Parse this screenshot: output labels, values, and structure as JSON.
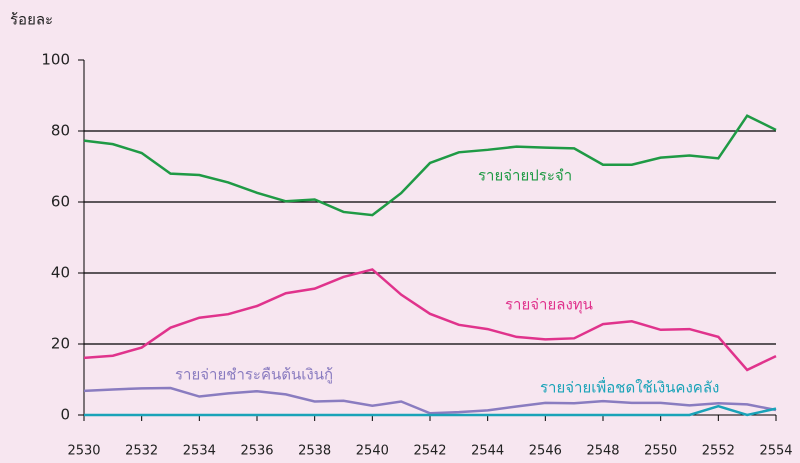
{
  "chart_data": {
    "type": "line",
    "y_label": "ร้อยละ",
    "x": [
      2530,
      2531,
      2532,
      2533,
      2534,
      2535,
      2536,
      2537,
      2538,
      2539,
      2540,
      2541,
      2542,
      2543,
      2544,
      2545,
      2546,
      2547,
      2548,
      2549,
      2550,
      2551,
      2552,
      2553,
      2554
    ],
    "xlim": [
      2530,
      2554
    ],
    "xticks": [
      2530,
      2532,
      2534,
      2536,
      2538,
      2540,
      2542,
      2544,
      2546,
      2548,
      2550,
      2552,
      2554
    ],
    "ylim": [
      0,
      100
    ],
    "yticks": [
      0,
      20,
      40,
      60,
      80,
      100
    ],
    "grid": true,
    "series": [
      {
        "name": "รายจ่ายประจำ",
        "color": "#1f9a45",
        "values": [
          77.3,
          76.3,
          73.8,
          68,
          67.6,
          65.5,
          62.6,
          60.2,
          60.7,
          57.2,
          56.3,
          62.5,
          71,
          74,
          74.7,
          75.6,
          75.3,
          75.1,
          70.5,
          70.5,
          72.5,
          73.1,
          72.3,
          84.3,
          80.3
        ]
      },
      {
        "name": "รายจ่ายลงทุน",
        "color": "#e0338c",
        "values": [
          16.1,
          16.7,
          19,
          24.6,
          27.4,
          28.4,
          30.7,
          34.3,
          35.6,
          38.9,
          41,
          33.9,
          28.5,
          25.4,
          24.2,
          22,
          21.3,
          21.6,
          25.6,
          26.4,
          24,
          24.2,
          22,
          12.7,
          16.6
        ]
      },
      {
        "name": "รายจ่ายชำระคืนต้นเงินกู้",
        "color": "#8a7cc0",
        "values": [
          6.8,
          7.2,
          7.5,
          7.6,
          5.2,
          6.1,
          6.7,
          5.8,
          3.8,
          4,
          2.6,
          3.8,
          0.5,
          0.8,
          1.3,
          2.4,
          3.4,
          3.3,
          3.9,
          3.4,
          3.4,
          2.7,
          3.3,
          3.0,
          1.4
        ]
      },
      {
        "name": "รายจ่ายเพื่อชดใช้เงินคงคลัง",
        "color": "#1aa3b8",
        "values": [
          0,
          0,
          0,
          0,
          0,
          0,
          0,
          0,
          0,
          0,
          0,
          0,
          0,
          0,
          0,
          0,
          0,
          0,
          0,
          0,
          0,
          0,
          2.5,
          0,
          1.8
        ]
      }
    ]
  }
}
